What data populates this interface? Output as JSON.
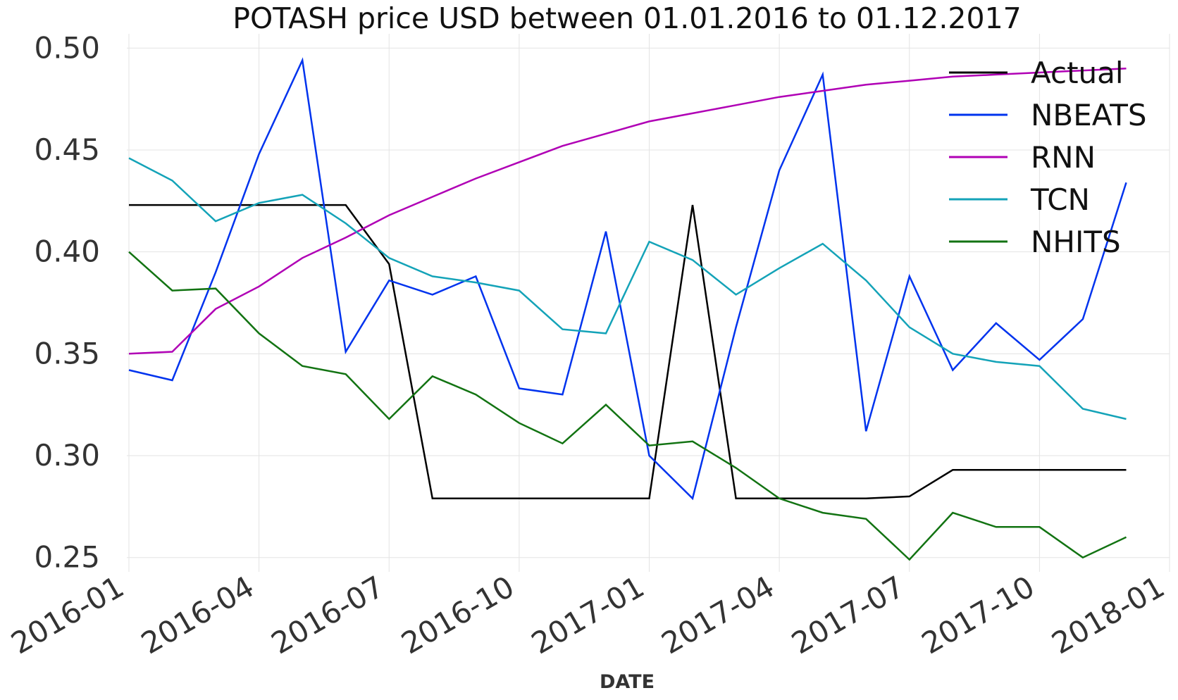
{
  "chart_data": {
    "type": "line",
    "title": "POTASH price USD between 01.01.2016 to 01.12.2017",
    "xlabel": "DATE",
    "ylabel": "",
    "x": [
      "2016-01",
      "2016-02",
      "2016-03",
      "2016-04",
      "2016-05",
      "2016-06",
      "2016-07",
      "2016-08",
      "2016-09",
      "2016-10",
      "2016-11",
      "2016-12",
      "2017-01",
      "2017-02",
      "2017-03",
      "2017-04",
      "2017-05",
      "2017-06",
      "2017-07",
      "2017-08",
      "2017-09",
      "2017-10",
      "2017-11",
      "2017-12"
    ],
    "xticks": [
      "2016-01",
      "2016-04",
      "2016-07",
      "2016-10",
      "2017-01",
      "2017-04",
      "2017-07",
      "2017-10",
      "2018-01"
    ],
    "yticks": [
      "0.25",
      "0.30",
      "0.35",
      "0.40",
      "0.45",
      "0.50"
    ],
    "ylim": [
      0.243,
      0.507
    ],
    "xlim": [
      "2016-01",
      "2018-01"
    ],
    "grid": true,
    "legend_position": "top-right",
    "series": [
      {
        "name": "Actual",
        "color": "#000000",
        "values": [
          0.423,
          0.423,
          0.423,
          0.423,
          0.423,
          0.423,
          0.394,
          0.279,
          0.279,
          0.279,
          0.279,
          0.279,
          0.279,
          0.423,
          0.279,
          0.279,
          0.279,
          0.279,
          0.28,
          0.293,
          0.293,
          0.293,
          0.293,
          0.293
        ]
      },
      {
        "name": "NBEATS",
        "color": "#0033ee",
        "values": [
          0.342,
          0.337,
          0.39,
          0.448,
          0.494,
          0.351,
          0.386,
          0.379,
          0.388,
          0.333,
          0.33,
          0.41,
          0.3,
          0.279,
          0.363,
          0.44,
          0.487,
          0.312,
          0.388,
          0.342,
          0.365,
          0.347,
          0.367,
          0.434
        ]
      },
      {
        "name": "RNN",
        "color": "#b000b5",
        "values": [
          0.35,
          0.351,
          0.372,
          0.383,
          0.397,
          0.407,
          0.418,
          0.427,
          0.436,
          0.444,
          0.452,
          0.458,
          0.464,
          0.468,
          0.472,
          0.476,
          0.479,
          0.482,
          0.484,
          0.486,
          0.487,
          0.488,
          0.489,
          0.49
        ]
      },
      {
        "name": "TCN",
        "color": "#14a3b8",
        "values": [
          0.446,
          0.435,
          0.415,
          0.424,
          0.428,
          0.414,
          0.397,
          0.388,
          0.385,
          0.381,
          0.362,
          0.36,
          0.405,
          0.396,
          0.379,
          0.392,
          0.404,
          0.386,
          0.363,
          0.35,
          0.346,
          0.344,
          0.323,
          0.318
        ]
      },
      {
        "name": "NHITS",
        "color": "#127312",
        "values": [
          0.4,
          0.381,
          0.382,
          0.36,
          0.344,
          0.34,
          0.318,
          0.339,
          0.33,
          0.316,
          0.306,
          0.325,
          0.305,
          0.307,
          0.294,
          0.279,
          0.272,
          0.269,
          0.249,
          0.272,
          0.265,
          0.265,
          0.25,
          0.26
        ]
      }
    ]
  }
}
